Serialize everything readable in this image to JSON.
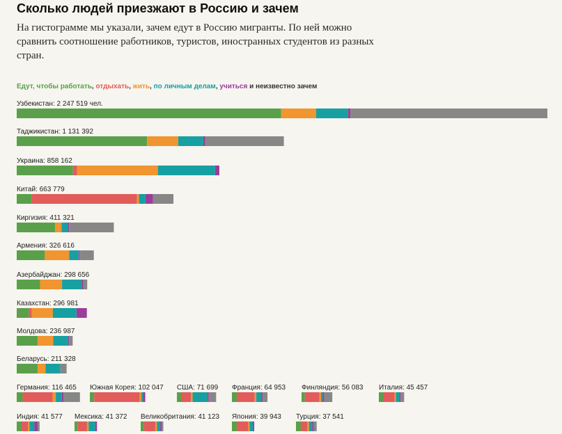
{
  "title": "Сколько людей приезжают в Россию и зачем",
  "subtitle": "На гистограмме мы указали, зачем едут в Россию мигранты. По ней можно сравнить соотношение работников, туристов, иностранных студентов из разных стран.",
  "legend": [
    {
      "label": "Едут, чтобы работать",
      "color": "#5aa04a"
    },
    {
      "label": ", ",
      "color": "#333333"
    },
    {
      "label": "отдыхать",
      "color": "#e25c5a"
    },
    {
      "label": ", ",
      "color": "#333333"
    },
    {
      "label": "жить",
      "color": "#f0952f"
    },
    {
      "label": ", ",
      "color": "#333333"
    },
    {
      "label": "по личным делам",
      "color": "#17a0a2"
    },
    {
      "label": ", ",
      "color": "#333333"
    },
    {
      "label": "учиться",
      "color": "#9b3d9b"
    },
    {
      "label": " и неизвестно зачем",
      "color": "#333333"
    }
  ],
  "chart_data": {
    "type": "bar",
    "orientation": "horizontal",
    "stacked": true,
    "series_names": [
      "работать",
      "отдыхать",
      "жить",
      "по личным делам",
      "учиться",
      "неизвестно зачем"
    ],
    "colors": [
      "#5aa04a",
      "#e25c5a",
      "#f0952f",
      "#17a0a2",
      "#9b3d9b",
      "#878787"
    ],
    "rows": [
      {
        "label": "Узбекистан: 2 247 519 чел.",
        "total": 2247519,
        "segments": [
          1120000,
          0,
          148000,
          135000,
          10000,
          834519
        ]
      },
      {
        "label": "Таджикистан: 1 131 392",
        "total": 1131392,
        "segments": [
          552000,
          0,
          132000,
          106000,
          8000,
          333392
        ]
      },
      {
        "label": "Украина: 858 162",
        "total": 858162,
        "segments": [
          238000,
          18000,
          342000,
          242000,
          18162,
          0
        ]
      },
      {
        "label": "Китай: 663 779",
        "total": 663779,
        "segments": [
          63000,
          446000,
          9000,
          27000,
          32000,
          86779
        ]
      },
      {
        "label": "Киргизия: 411 321",
        "total": 411321,
        "segments": [
          163000,
          0,
          27000,
          27000,
          5000,
          189321
        ]
      },
      {
        "label": "Армения: 326 616",
        "total": 326616,
        "segments": [
          119000,
          0,
          103000,
          40000,
          4000,
          60616
        ]
      },
      {
        "label": "Азербайджан: 298 656",
        "total": 298656,
        "segments": [
          99000,
          0,
          93000,
          83000,
          7000,
          16656
        ]
      },
      {
        "label": "Казахстан: 296 981",
        "total": 296981,
        "segments": [
          52000,
          12000,
          89000,
          100000,
          43981,
          0
        ]
      },
      {
        "label": "Молдова: 236 987",
        "total": 236987,
        "segments": [
          89000,
          0,
          66000,
          63000,
          4000,
          14987
        ]
      },
      {
        "label": "Беларусь: 211 328",
        "total": 211328,
        "segments": [
          89000,
          0,
          33000,
          63000,
          0,
          26328
        ]
      },
      {
        "label": "Германия: 116 465",
        "total": 116465,
        "segments": [
          11000,
          55000,
          6000,
          11000,
          3000,
          30465
        ]
      },
      {
        "label": "Южная Корея: 102 047",
        "total": 102047,
        "segments": [
          8000,
          84000,
          3000,
          3000,
          4047,
          0
        ]
      },
      {
        "label": "США: 71 699",
        "total": 71699,
        "segments": [
          9000,
          17000,
          3000,
          27000,
          2000,
          13699
        ]
      },
      {
        "label": "Франция: 64 953",
        "total": 64953,
        "segments": [
          9000,
          33000,
          3000,
          9000,
          2000,
          8953
        ]
      },
      {
        "label": "Финляндия: 56 083",
        "total": 56083,
        "segments": [
          6000,
          27000,
          3000,
          3000,
          2000,
          15083
        ]
      },
      {
        "label": "Италия: 45 457",
        "total": 45457,
        "segments": [
          9000,
          20000,
          2000,
          6000,
          2000,
          6457
        ]
      },
      {
        "label": "Индия: 41 577",
        "total": 41577,
        "segments": [
          9000,
          12000,
          2000,
          9000,
          6000,
          3577
        ]
      },
      {
        "label": "Мексика: 41 372",
        "total": 41372,
        "segments": [
          6000,
          17000,
          3000,
          12000,
          3372,
          0
        ]
      },
      {
        "label": "Великобритания: 41 123",
        "total": 41123,
        "segments": [
          6000,
          21000,
          3000,
          6000,
          2000,
          3123
        ]
      },
      {
        "label": "Япония: 39 943",
        "total": 39943,
        "segments": [
          9000,
          21000,
          2000,
          6000,
          1943,
          0
        ]
      },
      {
        "label": "Турция: 37 541",
        "total": 37541,
        "segments": [
          9000,
          12000,
          3000,
          6000,
          2000,
          5541
        ]
      }
    ]
  }
}
